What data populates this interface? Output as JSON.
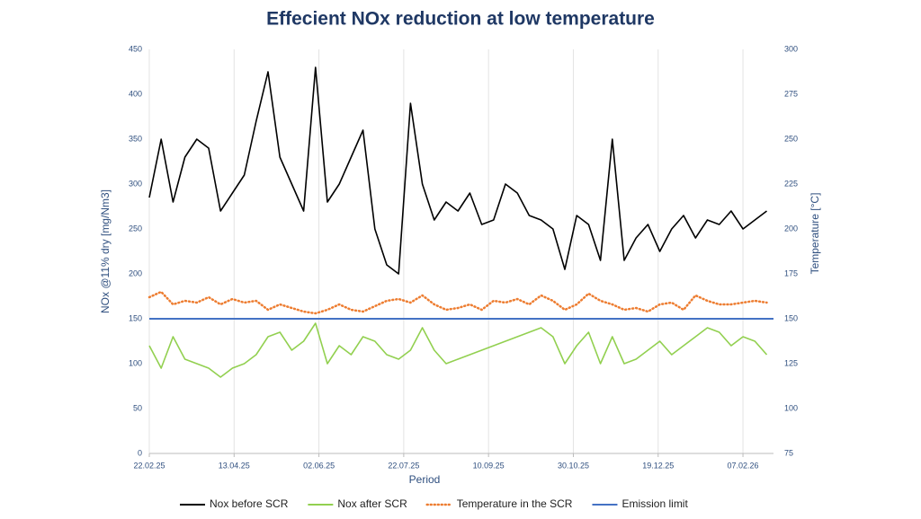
{
  "chart_data": {
    "type": "line",
    "title": "Effecient NOx reduction at low temperature",
    "xlabel": "Period",
    "ylabel": "NOx @11% dry [mg/Nm3]",
    "y2label": "Temperature [°C]",
    "x": [
      "2025-02-22",
      "2025-03-01",
      "2025-03-08",
      "2025-03-15",
      "2025-03-22",
      "2025-03-29",
      "2025-04-05",
      "2025-04-12",
      "2025-04-19",
      "2025-04-26",
      "2025-05-03",
      "2025-05-10",
      "2025-05-17",
      "2025-05-24",
      "2025-05-31",
      "2025-06-07",
      "2025-06-14",
      "2025-06-21",
      "2025-06-28",
      "2025-07-05",
      "2025-07-12",
      "2025-07-19",
      "2025-07-26",
      "2025-08-02",
      "2025-08-09",
      "2025-08-16",
      "2025-08-23",
      "2025-08-30",
      "2025-09-06",
      "2025-09-13",
      "2025-09-20",
      "2025-09-27",
      "2025-10-04",
      "2025-10-11",
      "2025-10-18",
      "2025-10-25",
      "2025-11-01",
      "2025-11-08",
      "2025-11-15",
      "2025-11-22",
      "2025-11-29",
      "2025-12-06",
      "2025-12-13",
      "2025-12-20",
      "2025-12-27",
      "2026-01-03",
      "2026-01-10",
      "2026-01-17",
      "2026-01-24",
      "2026-01-31",
      "2026-02-07",
      "2026-02-14",
      "2026-02-21"
    ],
    "series": [
      {
        "name": "Nox before SCR",
        "color": "#000000",
        "style": "solid",
        "values": [
          285,
          350,
          280,
          330,
          350,
          340,
          270,
          290,
          310,
          370,
          425,
          330,
          300,
          270,
          430,
          280,
          300,
          330,
          360,
          250,
          210,
          200,
          390,
          300,
          260,
          280,
          270,
          290,
          255,
          260,
          300,
          290,
          265,
          260,
          250,
          205,
          265,
          255,
          215,
          350,
          215,
          240,
          255,
          225,
          250,
          265,
          240,
          260,
          255,
          270,
          250,
          260,
          270
        ]
      },
      {
        "name": "Nox after SCR",
        "color": "#92d050",
        "style": "solid",
        "values": [
          120,
          95,
          130,
          105,
          100,
          95,
          85,
          95,
          100,
          110,
          130,
          135,
          115,
          125,
          145,
          100,
          120,
          110,
          130,
          125,
          110,
          105,
          115,
          140,
          115,
          100,
          105,
          110,
          115,
          120,
          125,
          130,
          135,
          140,
          130,
          100,
          120,
          135,
          100,
          130,
          100,
          105,
          115,
          125,
          110,
          120,
          130,
          140,
          135,
          120,
          130,
          125,
          110
        ]
      },
      {
        "name": "Temperature in the SCR",
        "color": "#ed7d31",
        "style": "dotted",
        "axis": "y2",
        "values": [
          162,
          165,
          158,
          160,
          159,
          162,
          158,
          161,
          159,
          160,
          155,
          158,
          156,
          154,
          153,
          155,
          158,
          155,
          154,
          157,
          160,
          161,
          159,
          163,
          158,
          155,
          156,
          158,
          155,
          160,
          159,
          161,
          158,
          163,
          160,
          155,
          158,
          164,
          160,
          158,
          155,
          156,
          154,
          158,
          159,
          155,
          163,
          160,
          158,
          158,
          159,
          160,
          159
        ]
      }
    ],
    "reference_lines": [
      {
        "name": "Emission limit",
        "value": 150,
        "color": "#4472c4"
      }
    ],
    "xlim": [
      "2025-02-22",
      "2026-02-25"
    ],
    "xticks": [
      {
        "value": "2025-02-22",
        "label": "22.02.25"
      },
      {
        "value": "2025-04-13",
        "label": "13.04.25"
      },
      {
        "value": "2025-06-02",
        "label": "02.06.25"
      },
      {
        "value": "2025-07-22",
        "label": "22.07.25"
      },
      {
        "value": "2025-09-10",
        "label": "10.09.25"
      },
      {
        "value": "2025-10-30",
        "label": "30.10.25"
      },
      {
        "value": "2025-12-19",
        "label": "19.12.25"
      },
      {
        "value": "2026-02-07",
        "label": "07.02.26"
      }
    ],
    "ylim": [
      0,
      450
    ],
    "yticks": [
      0,
      50,
      100,
      150,
      200,
      250,
      300,
      350,
      400,
      450
    ],
    "y2lim": [
      75,
      300
    ],
    "y2ticks": [
      75,
      100,
      125,
      150,
      175,
      200,
      225,
      250,
      275,
      300
    ],
    "grid": "x",
    "legend": "bottom"
  }
}
